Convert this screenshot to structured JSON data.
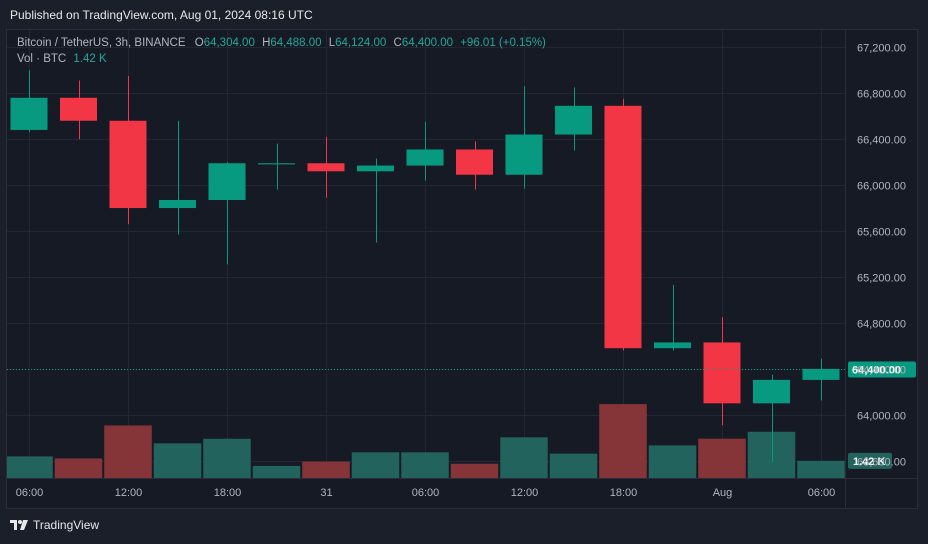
{
  "header": {
    "published_text": "Published on TradingView.com, Aug 01, 2024 08:16 UTC"
  },
  "legend": {
    "symbol": "Bitcoin / TetherUS, 3h, BINANCE",
    "o_label": "O",
    "o_value": "64,304.00",
    "h_label": "H",
    "h_value": "64,488.00",
    "l_label": "L",
    "l_value": "64,124.00",
    "c_label": "C",
    "c_value": "64,400.00",
    "change": "+96.01 (+0.15%)",
    "vol_label": "Vol · BTC",
    "vol_value": "1.42 K"
  },
  "footer": {
    "brand": "TradingView"
  },
  "colors": {
    "up": "#089981",
    "down": "#f23645",
    "vol_up": "#22635e",
    "vol_down": "#853438",
    "bg": "#161a25",
    "grid": "#232733"
  },
  "chart_data": {
    "type": "candlestick",
    "title": "Bitcoin / TetherUS, 3h, BINANCE",
    "y_ticks": [
      "67,200.00",
      "66,800.00",
      "66,400.00",
      "66,000.00",
      "65,600.00",
      "65,200.00",
      "64,800.00",
      "64,400.00",
      "64,000.00",
      "63,600.00"
    ],
    "y_tick_values": [
      67200,
      66800,
      66400,
      66000,
      65600,
      65200,
      64800,
      64400,
      64000,
      63600
    ],
    "ylim": [
      63450,
      67350
    ],
    "x_ticks": [
      {
        "label": "06:00",
        "index": 0
      },
      {
        "label": "12:00",
        "index": 2
      },
      {
        "label": "18:00",
        "index": 4
      },
      {
        "label": "31",
        "index": 6
      },
      {
        "label": "06:00",
        "index": 8
      },
      {
        "label": "12:00",
        "index": 10
      },
      {
        "label": "18:00",
        "index": 12
      },
      {
        "label": "Aug",
        "index": 14
      },
      {
        "label": "06:00",
        "index": 16
      }
    ],
    "last_price_label": "64,400.00",
    "last_price": 64400,
    "last_volume_label": "1.42 K",
    "candles": [
      {
        "o": 66480,
        "h": 67000,
        "l": 66460,
        "c": 66760
      },
      {
        "o": 66760,
        "h": 66910,
        "l": 66400,
        "c": 66560
      },
      {
        "o": 66560,
        "h": 66950,
        "l": 65660,
        "c": 65800
      },
      {
        "o": 65800,
        "h": 66560,
        "l": 65570,
        "c": 65870
      },
      {
        "o": 65870,
        "h": 66200,
        "l": 65310,
        "c": 66190
      },
      {
        "o": 66180,
        "h": 66360,
        "l": 65960,
        "c": 66190
      },
      {
        "o": 66190,
        "h": 66420,
        "l": 65890,
        "c": 66120
      },
      {
        "o": 66120,
        "h": 66230,
        "l": 65500,
        "c": 66170
      },
      {
        "o": 66170,
        "h": 66550,
        "l": 66040,
        "c": 66310
      },
      {
        "o": 66310,
        "h": 66380,
        "l": 65960,
        "c": 66090
      },
      {
        "o": 66090,
        "h": 66860,
        "l": 65970,
        "c": 66440
      },
      {
        "o": 66440,
        "h": 66850,
        "l": 66300,
        "c": 66690
      },
      {
        "o": 66690,
        "h": 66750,
        "l": 64560,
        "c": 64580
      },
      {
        "o": 64580,
        "h": 65130,
        "l": 64560,
        "c": 64630
      },
      {
        "o": 64630,
        "h": 64850,
        "l": 63910,
        "c": 64100
      },
      {
        "o": 64100,
        "h": 64350,
        "l": 63590,
        "c": 64304
      },
      {
        "o": 64304,
        "h": 64488,
        "l": 64124,
        "c": 64400
      }
    ],
    "volume": [
      1.79,
      1.62,
      4.35,
      2.87,
      3.25,
      1.0,
      1.36,
      2.13,
      2.13,
      1.18,
      3.37,
      2.02,
      6.12,
      2.7,
      3.26,
      3.83,
      1.42
    ],
    "volume_unit": "K BTC",
    "grid": true
  }
}
